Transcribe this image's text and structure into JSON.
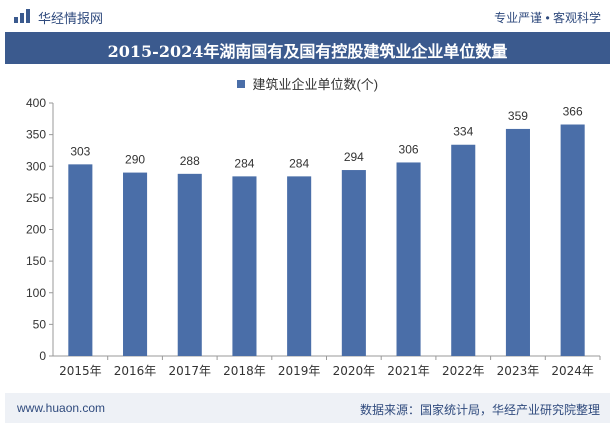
{
  "header": {
    "brand": "华经情报网",
    "slogan": "专业严谨 • 客观科学"
  },
  "chart_data": {
    "type": "bar",
    "title": "2015-2024年湖南国有及国有控股建筑业企业单位数量",
    "categories": [
      "2015年",
      "2016年",
      "2017年",
      "2018年",
      "2019年",
      "2020年",
      "2021年",
      "2022年",
      "2023年",
      "2024年"
    ],
    "series": [
      {
        "name": "建筑业企业单位数(个)",
        "values": [
          303,
          290,
          288,
          284,
          284,
          294,
          306,
          334,
          359,
          366
        ]
      }
    ],
    "ylim": [
      0,
      400
    ],
    "yticks": [
      0,
      50,
      100,
      150,
      200,
      250,
      300,
      350,
      400
    ],
    "grid": false,
    "legend_position": "top-center",
    "bar_color": "#4a6ea8"
  },
  "footer": {
    "url": "www.huaon.com",
    "source": "数据来源：国家统计局，华经产业研究院整理"
  }
}
